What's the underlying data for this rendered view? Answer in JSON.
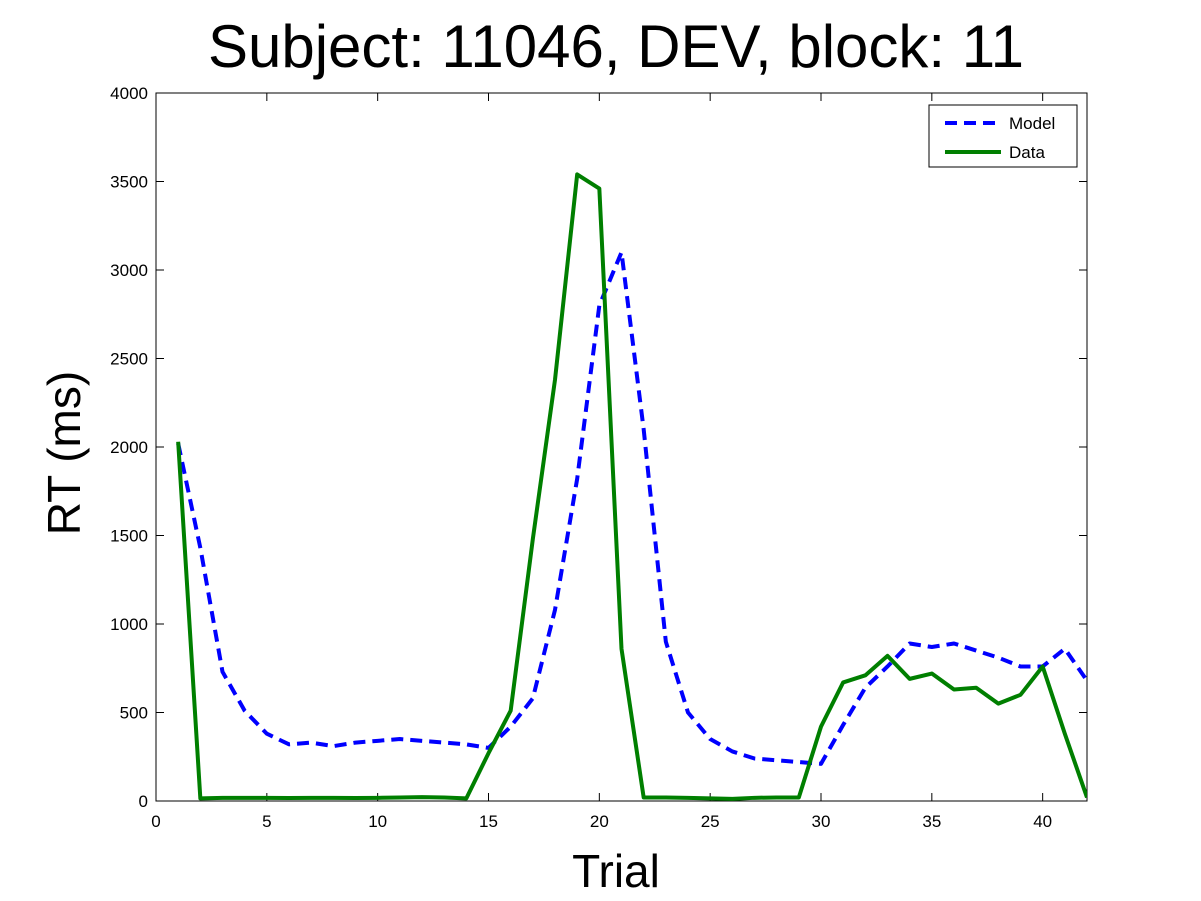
{
  "chart_data": {
    "type": "line",
    "title": "Subject: 11046, DEV, block: 11",
    "xlabel": "Trial",
    "ylabel": "RT (ms)",
    "xlim": [
      0,
      42
    ],
    "ylim": [
      0,
      4000
    ],
    "xticks": [
      0,
      5,
      10,
      15,
      20,
      25,
      30,
      35,
      40
    ],
    "yticks": [
      0,
      500,
      1000,
      1500,
      2000,
      2500,
      3000,
      3500,
      4000
    ],
    "grid": false,
    "legend_position": "top-right",
    "x": [
      1,
      2,
      3,
      4,
      5,
      6,
      7,
      8,
      9,
      10,
      11,
      12,
      13,
      14,
      15,
      16,
      17,
      18,
      19,
      20,
      21,
      22,
      23,
      24,
      25,
      26,
      27,
      28,
      29,
      30,
      31,
      32,
      33,
      34,
      35,
      36,
      37,
      38,
      39,
      40,
      41,
      42
    ],
    "series": [
      {
        "name": "Model",
        "color": "#0000ff",
        "style": "dashed",
        "values": [
          2020,
          1430,
          730,
          510,
          380,
          320,
          330,
          310,
          330,
          340,
          350,
          340,
          330,
          320,
          300,
          420,
          580,
          1080,
          1820,
          2800,
          3100,
          2100,
          900,
          500,
          350,
          280,
          240,
          230,
          220,
          210,
          430,
          640,
          760,
          890,
          870,
          890,
          850,
          810,
          760,
          760,
          860,
          680
        ]
      },
      {
        "name": "Data",
        "color": "#007f00",
        "style": "solid",
        "values": [
          2030,
          15,
          18,
          18,
          18,
          17,
          18,
          18,
          17,
          18,
          20,
          22,
          20,
          15,
          270,
          510,
          1480,
          2380,
          3540,
          3460,
          860,
          20,
          20,
          18,
          15,
          12,
          18,
          20,
          20,
          420,
          670,
          710,
          820,
          690,
          720,
          630,
          640,
          550,
          600,
          760,
          380,
          20
        ]
      }
    ]
  }
}
